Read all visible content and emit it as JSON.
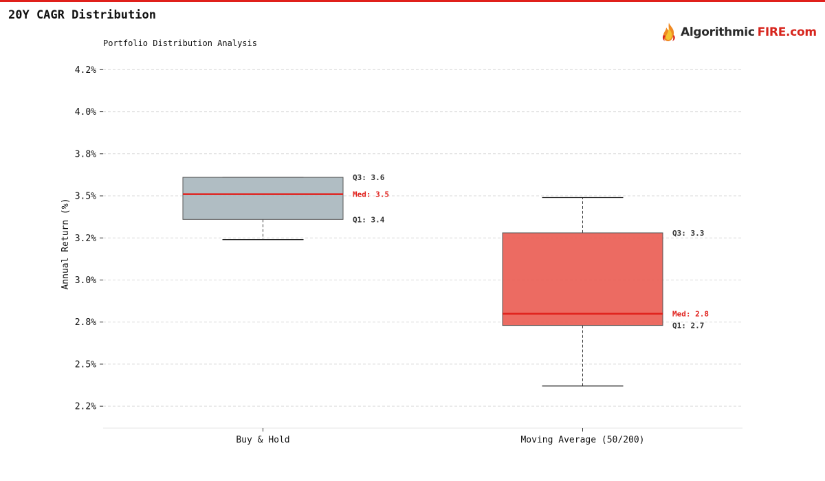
{
  "header": {
    "title": "20Y CAGR Distribution",
    "brand_name": "Algorithmic",
    "brand_accent": "FIRE.com",
    "accent_color": "#e0201b"
  },
  "chart_data": {
    "type": "boxplot",
    "title": "Portfolio Distribution Analysis",
    "ylabel": "Annual Return (%)",
    "xlabel": "",
    "ylim": [
      2.12,
      4.28
    ],
    "yticks": [
      2.25,
      2.5,
      2.75,
      3.0,
      3.25,
      3.5,
      3.75,
      4.0,
      4.25
    ],
    "ytick_labels": [
      "2.2%",
      "2.5%",
      "2.8%",
      "3.0%",
      "3.2%",
      "3.5%",
      "3.8%",
      "4.0%",
      "4.2%"
    ],
    "grid": true,
    "categories": [
      "Buy & Hold",
      "Moving Average (50/200)"
    ],
    "boxes": [
      {
        "name": "Buy & Hold",
        "whisker_low": 3.24,
        "q1": 3.36,
        "median": 3.51,
        "q3": 3.61,
        "whisker_high": 3.61,
        "color": "#a5b4bb",
        "q3_label": "Q3: 3.6",
        "median_label": "Med: 3.5",
        "q1_label": "Q1: 3.4"
      },
      {
        "name": "Moving Average (50/200)",
        "whisker_low": 2.37,
        "q1": 2.73,
        "median": 2.8,
        "q3": 3.28,
        "whisker_high": 3.49,
        "color": "#e9574c",
        "q3_label": "Q3: 3.3",
        "median_label": "Med: 2.8",
        "q1_label": "Q1: 2.7"
      }
    ],
    "median_color": "#e0201b"
  }
}
